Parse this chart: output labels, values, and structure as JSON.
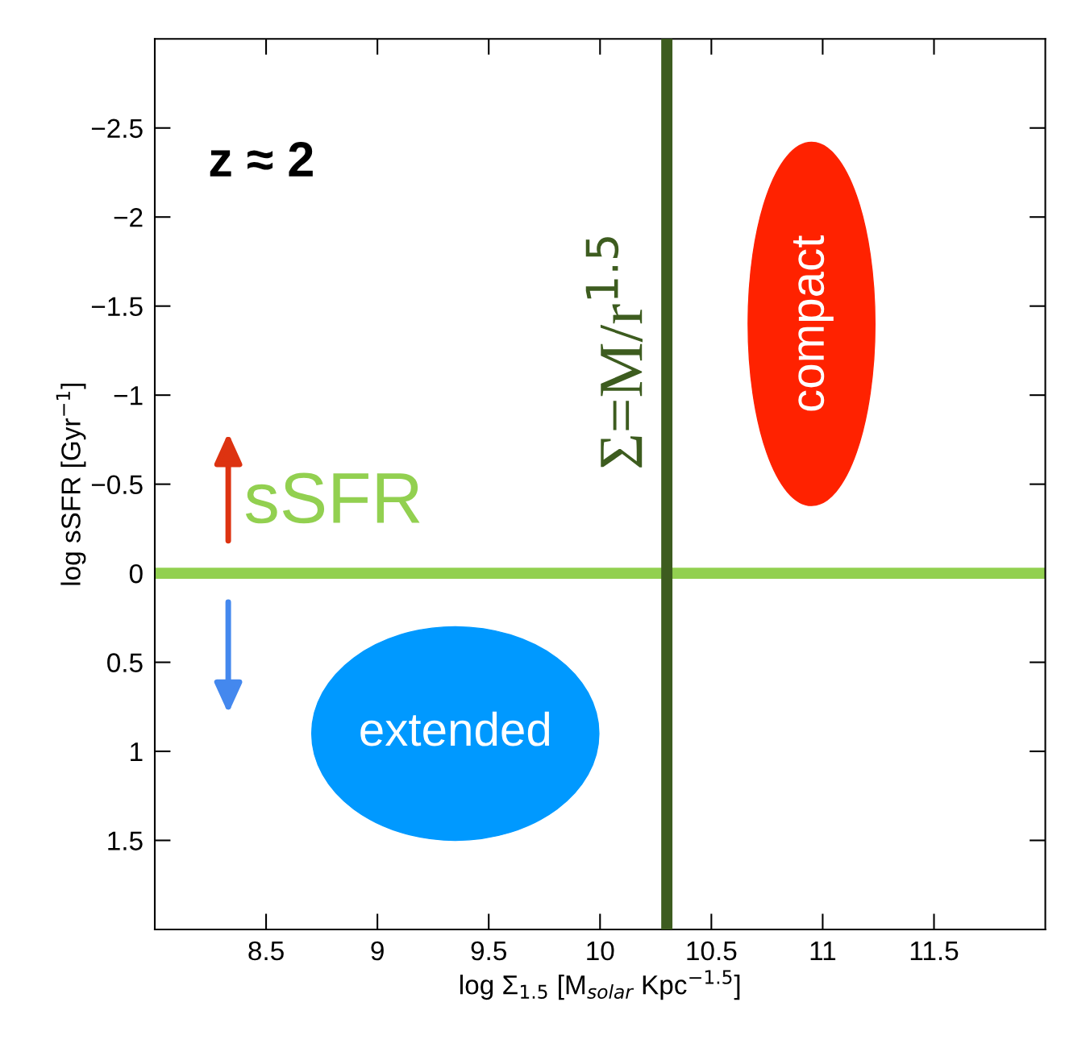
{
  "chart_data": {
    "type": "scatter",
    "xlabel": "log Σ$_{1.5}$ [M$_{solar}$ Kpc$^{−1.5}$]",
    "ylabel": "log sSFR [Gyr$^{−1}$]",
    "xlim": [
      8,
      12
    ],
    "ylim": [
      2,
      -3
    ],
    "xticks": [
      8.5,
      9,
      9.5,
      10,
      10.5,
      11,
      11.5
    ],
    "yticks": [
      {
        "value": -2.5,
        "label": "−2.5"
      },
      {
        "value": -2,
        "label": "−2"
      },
      {
        "value": -1.5,
        "label": "−1.5"
      },
      {
        "value": -1,
        "label": "−1"
      },
      {
        "value": -0.5,
        "label": "−0.5"
      },
      0,
      0.5,
      1,
      1.5
    ],
    "ref_lines": [
      {
        "axis": "x",
        "value": 10.3,
        "label": "Σ=M/r$^{1.5}$",
        "color": "#3d5c1f"
      },
      {
        "axis": "y",
        "value": 0,
        "label": "sSFR",
        "color": "#92d050"
      }
    ],
    "annotations": [
      "z ≈ 2",
      "compact",
      "extended"
    ]
  }
}
